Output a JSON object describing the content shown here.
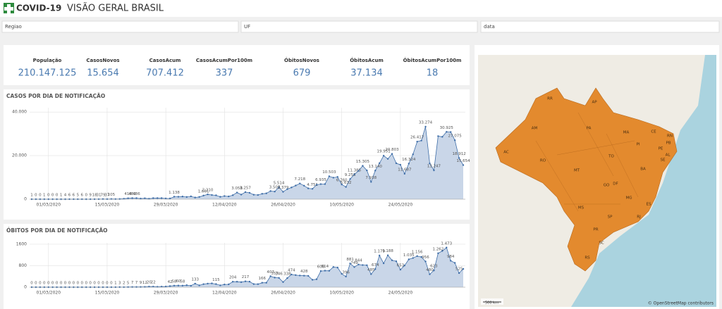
{
  "header": {
    "app": "COVID-19",
    "title": "VISÃO GERAL BRASIL"
  },
  "filters": [
    "Regiao",
    "UF",
    "data"
  ],
  "kpis": [
    {
      "label": "População",
      "value": "210.147.125"
    },
    {
      "label": "CasosNovos",
      "value": "15.654"
    },
    {
      "label": "CasosAcum",
      "value": "707.412"
    },
    {
      "label": "CasosAcumPor100m",
      "value": "337"
    },
    {
      "label": "ÓbitosNovos",
      "value": "679"
    },
    {
      "label": "ÓbitosAcum",
      "value": "37.134"
    },
    {
      "label": "ÓbitosAcumPor100m",
      "value": "18"
    }
  ],
  "chart_data": [
    {
      "type": "area",
      "title": "CASOS POR DIA DE NOTIFICAÇÃO",
      "color": "#3f6ea8",
      "fill": "#c9d6e8",
      "grid": true,
      "categories": [
        null,
        null,
        null,
        null,
        "01/03/2020",
        null,
        null,
        null,
        null,
        null,
        null,
        null,
        null,
        null,
        null,
        null,
        null,
        null,
        "15/03/2020",
        null,
        null,
        null,
        null,
        null,
        null,
        null,
        null,
        null,
        null,
        null,
        null,
        null,
        "29/03/2020",
        null,
        null,
        null,
        null,
        null,
        null,
        null,
        null,
        null,
        null,
        null,
        null,
        null,
        "12/04/2020",
        null,
        null,
        null,
        null,
        null,
        null,
        null,
        null,
        null,
        null,
        null,
        null,
        null,
        "26/04/2020",
        null,
        null,
        null,
        null,
        null,
        null,
        null,
        null,
        null,
        null,
        null,
        null,
        null,
        "10/05/2020",
        null,
        null,
        null,
        null,
        null,
        null,
        null,
        null,
        null,
        null,
        null,
        null,
        null,
        "24/05/2020",
        null,
        null,
        null,
        null,
        null,
        null,
        null,
        null,
        null,
        null,
        null,
        null,
        null,
        null,
        null
      ],
      "values": [
        1,
        0,
        0,
        1,
        0,
        0,
        0,
        1,
        4,
        6,
        6,
        5,
        6,
        0,
        9,
        18,
        31,
        79,
        37,
        105,
        61,
        97,
        234,
        418,
        482,
        486,
        286,
        414,
        232,
        482,
        502,
        487,
        352,
        323,
        1138,
        1119,
        1208,
        1012,
        1304,
        770,
        1031,
        1661,
        2210,
        1930,
        1781,
        1089,
        1442,
        1261,
        1832,
        3058,
        2105,
        3257,
        2917,
        2055,
        1927,
        2498,
        2678,
        3735,
        3503,
        5514,
        3379,
        4613,
        5385,
        6276,
        7218,
        6209,
        4970,
        4751,
        6633,
        6935,
        6935,
        10503,
        9888,
        10222,
        6760,
        5632,
        9258,
        11385,
        13028,
        15305,
        13220,
        7938,
        13140,
        16517,
        19951,
        18508,
        20803,
        16508,
        15813,
        11687,
        16324,
        20599,
        26417,
        26928,
        33274,
        16409,
        13247,
        28936,
        28633,
        30925,
        30830,
        27075,
        18912,
        15654
      ],
      "value_labels": [
        "1",
        "0",
        "0",
        "1",
        "0",
        "0",
        "0",
        "1",
        "4",
        "6",
        "6",
        "5",
        "6",
        "0",
        "9",
        "18",
        "31",
        "79",
        "37",
        "105",
        null,
        null,
        null,
        "418",
        "482",
        "486",
        null,
        null,
        null,
        null,
        null,
        null,
        null,
        null,
        "1.138",
        null,
        null,
        null,
        null,
        null,
        null,
        "1.661",
        "2.210",
        null,
        null,
        null,
        null,
        null,
        null,
        "3.058",
        null,
        "3.257",
        null,
        null,
        null,
        null,
        null,
        null,
        "3.503",
        "5.514",
        "3.379",
        null,
        null,
        null,
        "7.218",
        null,
        null,
        "4.751",
        null,
        "6.935",
        null,
        "10.503",
        null,
        null,
        "6.760",
        "5.632",
        "9.258",
        "11.385",
        null,
        "15.305",
        null,
        "7.938",
        "13.140",
        null,
        "19.951",
        null,
        "20.803",
        null,
        null,
        "11.687",
        "16.324",
        null,
        "26.417",
        null,
        "33.274",
        null,
        "13.247",
        null,
        null,
        "30.925",
        null,
        "27.075",
        "18.912",
        "15.654"
      ],
      "ylim": [
        0,
        42000
      ],
      "yticks": [
        0,
        {
          "value": 20000,
          "label": "20.000"
        },
        {
          "value": 40000,
          "label": "40.000"
        }
      ]
    },
    {
      "type": "area",
      "title": "ÓBITOS POR DIA DE NOTIFICAÇÃO",
      "color": "#3f6ea8",
      "fill": "#c9d6e8",
      "grid": true,
      "categories": [
        null,
        null,
        null,
        null,
        "01/03/2020",
        null,
        null,
        null,
        null,
        null,
        null,
        null,
        null,
        null,
        null,
        null,
        null,
        null,
        "15/03/2020",
        null,
        null,
        null,
        null,
        null,
        null,
        null,
        null,
        null,
        null,
        null,
        null,
        null,
        "29/03/2020",
        null,
        null,
        null,
        null,
        null,
        null,
        null,
        null,
        null,
        null,
        null,
        null,
        null,
        "12/04/2020",
        null,
        null,
        null,
        null,
        null,
        null,
        null,
        null,
        null,
        null,
        null,
        null,
        null,
        "26/04/2020",
        null,
        null,
        null,
        null,
        null,
        null,
        null,
        null,
        null,
        null,
        null,
        null,
        null,
        "10/05/2020",
        null,
        null,
        null,
        null,
        null,
        null,
        null,
        null,
        null,
        null,
        null,
        null,
        null,
        "24/05/2020",
        null,
        null,
        null,
        null,
        null,
        null,
        null,
        null,
        null,
        null,
        null,
        null,
        null,
        null,
        null
      ],
      "values": [
        0,
        0,
        0,
        0,
        0,
        0,
        0,
        0,
        0,
        0,
        0,
        0,
        0,
        0,
        0,
        0,
        0,
        0,
        0,
        0,
        1,
        3,
        2,
        5,
        7,
        7,
        9,
        12,
        20,
        22,
        15,
        22,
        23,
        42,
        58,
        60,
        58,
        73,
        54,
        133,
        67,
        114,
        133,
        141,
        115,
        68,
        99,
        105,
        204,
        204,
        188,
        217,
        206,
        115,
        113,
        166,
        165,
        407,
        357,
        346,
        189,
        338,
        474,
        449,
        435,
        428,
        421,
        275,
        296,
        600,
        614,
        610,
        751,
        730,
        496,
        396,
        881,
        749,
        844,
        824,
        816,
        485,
        674,
        1179,
        888,
        1188,
        1001,
        965,
        653,
        807,
        1035,
        1086,
        1156,
        1124,
        956,
        480,
        623,
        1262,
        1349,
        1473,
        984,
        904,
        525,
        679
      ],
      "value_labels": [
        "0",
        "0",
        "0",
        "0",
        "0",
        "0",
        "0",
        "0",
        "0",
        "0",
        "0",
        "0",
        "0",
        "0",
        "0",
        "0",
        "0",
        "0",
        "0",
        "0",
        "1",
        "3",
        "2",
        "5",
        "7",
        "7",
        "9",
        "12",
        "20",
        "22",
        null,
        null,
        null,
        "42",
        "58",
        "60",
        "58",
        null,
        null,
        "133",
        null,
        null,
        null,
        null,
        "115",
        null,
        null,
        null,
        "204",
        null,
        null,
        "217",
        null,
        null,
        null,
        "166",
        null,
        "407",
        "357",
        "346",
        null,
        "338",
        "474",
        null,
        null,
        "428",
        null,
        null,
        null,
        "600",
        "614",
        null,
        null,
        null,
        null,
        "396",
        "881",
        "749",
        "844",
        null,
        null,
        "485",
        "674",
        "1.179",
        null,
        "1.188",
        null,
        null,
        "653",
        null,
        "1.035",
        null,
        "1.156",
        null,
        "956",
        "480",
        "623",
        "1.262",
        null,
        "1.473",
        "984",
        null,
        "525",
        null
      ],
      "ylim": [
        0,
        1650
      ],
      "yticks": [
        0,
        800,
        {
          "value": 1600,
          "label": "1600"
        }
      ]
    }
  ],
  "map": {
    "state_labels": [
      "RR",
      "AP",
      "AM",
      "PA",
      "MA",
      "CE",
      "RN",
      "PB",
      "PE",
      "AL",
      "SE",
      "PI",
      "TO",
      "BA",
      "AC",
      "RO",
      "MT",
      "GO",
      "DF",
      "MG",
      "ES",
      "MS",
      "SP",
      "RJ",
      "PR",
      "SC",
      "RS"
    ],
    "scale_label": "500 km",
    "attribution": "© OpenStreetMap contributors"
  }
}
